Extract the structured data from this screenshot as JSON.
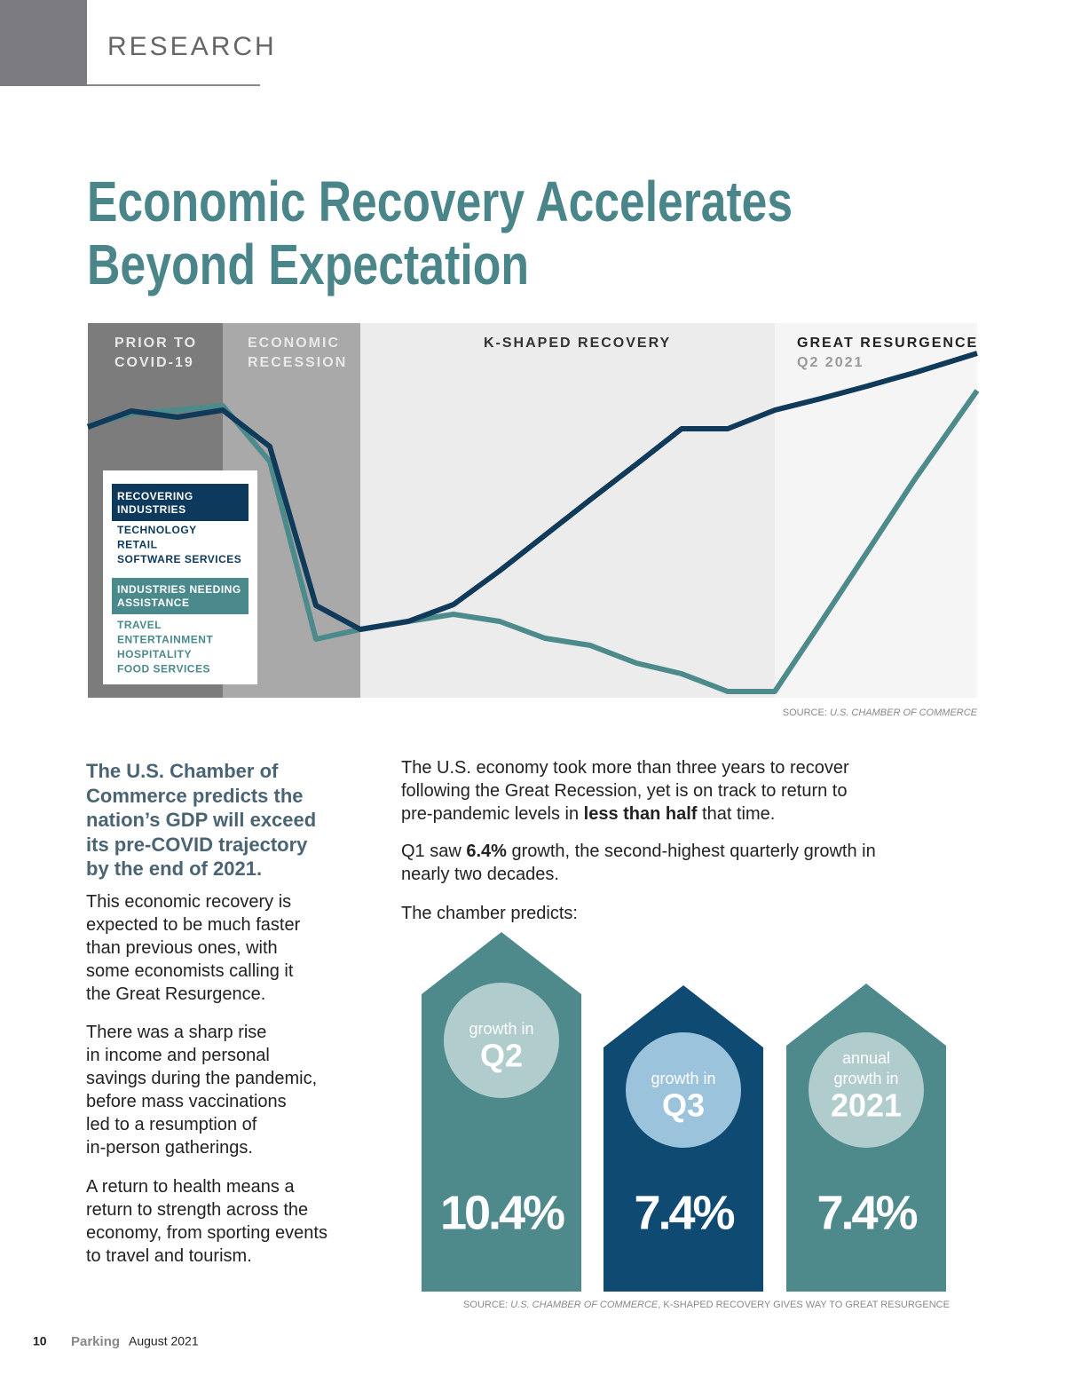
{
  "header": {
    "section": "RESEARCH"
  },
  "title": {
    "lines": [
      "Economic Recovery Accelerates",
      "Beyond Expectation"
    ]
  },
  "chart": {
    "phases": [
      {
        "lines": [
          "PRIOR TO",
          "COVID-19"
        ]
      },
      {
        "lines": [
          "ECONOMIC",
          "RECESSION"
        ]
      },
      {
        "lines": [
          "K-SHAPED RECOVERY"
        ]
      },
      {
        "lines": [
          "GREAT RESURGENCE",
          "Q2 2021"
        ]
      }
    ],
    "legend": [
      {
        "header": [
          "RECOVERING",
          "INDUSTRIES"
        ],
        "items": [
          "TECHNOLOGY",
          "RETAIL",
          "SOFTWARE SERVICES"
        ]
      },
      {
        "header": [
          "INDUSTRIES NEEDING",
          "ASSISTANCE"
        ],
        "items": [
          "TRAVEL",
          "ENTERTAINMENT",
          "HOSPITALITY",
          "FOOD SERVICES"
        ]
      }
    ],
    "source": {
      "prefix": "SOURCE: ",
      "name": "U.S. CHAMBER OF COMMERCE"
    }
  },
  "left_column": {
    "lead": [
      "The U.S. Chamber of",
      "Commerce predicts the",
      "nation’s GDP will exceed",
      "its pre-COVID trajectory",
      "by the end of 2021."
    ],
    "paragraphs": [
      [
        "This economic recovery is",
        "expected to be much faster",
        "than previous ones, with",
        "some economists calling it",
        "the Great Resurgence."
      ],
      [
        "There was a sharp rise",
        "in income and personal",
        "savings during the pandemic,",
        "before mass vaccinations",
        "led to a resumption of",
        "in-person gatherings."
      ],
      [
        "A return to health means a",
        "return to strength across the",
        "economy, from sporting events",
        "to travel and tourism."
      ]
    ]
  },
  "right_column": {
    "paragraphs": [
      [
        [
          {
            "text": "The U.S. economy took more than three years to recover"
          }
        ],
        [
          {
            "text": "following the Great Recession, yet is on track to return to"
          }
        ],
        [
          {
            "text": "pre-pandemic levels in "
          },
          {
            "text": "less than half",
            "bold": true
          },
          {
            "text": " that time."
          }
        ]
      ],
      [
        [
          {
            "text": "Q1 saw "
          },
          {
            "text": "6.4%",
            "bold": true
          },
          {
            "text": " growth, the second-highest quarterly growth in"
          }
        ],
        [
          {
            "text": "nearly two decades."
          }
        ]
      ],
      [
        [
          {
            "text": "The chamber predicts:"
          }
        ]
      ]
    ]
  },
  "predictions": [
    {
      "caption": [
        "growth in"
      ],
      "period": "Q2",
      "value": "10.4%"
    },
    {
      "caption": [
        "growth in"
      ],
      "period": "Q3",
      "value": "7.4%"
    },
    {
      "caption": [
        "annual",
        "growth in"
      ],
      "period": "2021",
      "value": "7.4%"
    }
  ],
  "predictions_source": {
    "prefix": "SOURCE: ",
    "name": "U.S. CHAMBER OF COMMERCE",
    "suffix": ", K-SHAPED RECOVERY GIVES WAY TO GREAT RESURGENCE"
  },
  "footer": {
    "page": "10",
    "publication": "Parking",
    "issue": "August 2021"
  }
}
